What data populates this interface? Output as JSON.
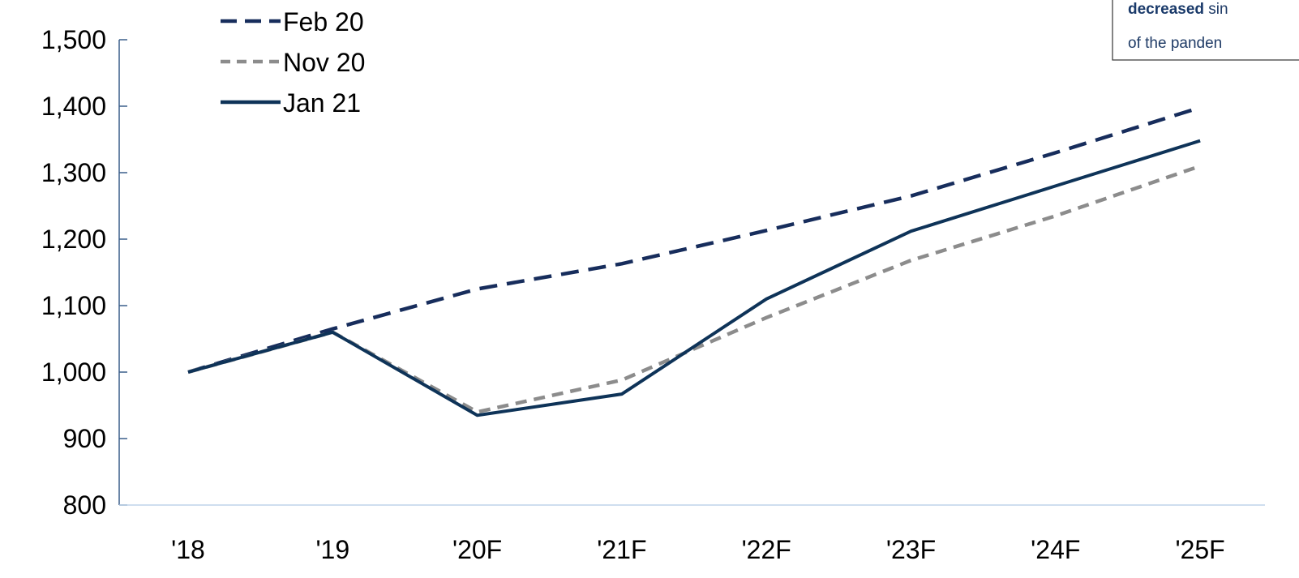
{
  "chart_data": {
    "type": "line",
    "categories": [
      "'18",
      "'19",
      "'20F",
      "'21F",
      "'22F",
      "'23F",
      "'24F",
      "'25F"
    ],
    "ylim": [
      800,
      1500
    ],
    "yticks": [
      800,
      900,
      1000,
      1100,
      1200,
      1300,
      1400,
      1500
    ],
    "ytick_labels": [
      "800",
      "900",
      "1,000",
      "1,100",
      "1,200",
      "1,300",
      "1,400",
      "1,500"
    ],
    "grid": false,
    "legend_position": "top-left",
    "series": [
      {
        "name": "Feb 20",
        "values": [
          1000,
          1065,
          1125,
          1163,
          1213,
          1265,
          1330,
          1398
        ],
        "color": "#172D5C",
        "style": "dashed"
      },
      {
        "name": "Nov 20",
        "values": [
          1000,
          1060,
          940,
          988,
          1082,
          1168,
          1235,
          1310
        ],
        "color": "#8C8C8C",
        "style": "dashed"
      },
      {
        "name": "Jan 21",
        "values": [
          1000,
          1060,
          935,
          967,
          1110,
          1212,
          1280,
          1348
        ],
        "color": "#0E3358",
        "style": "solid"
      }
    ],
    "annotation": {
      "bold": "decreased",
      "line1_rest": " sin",
      "line2": "of the panden"
    }
  }
}
